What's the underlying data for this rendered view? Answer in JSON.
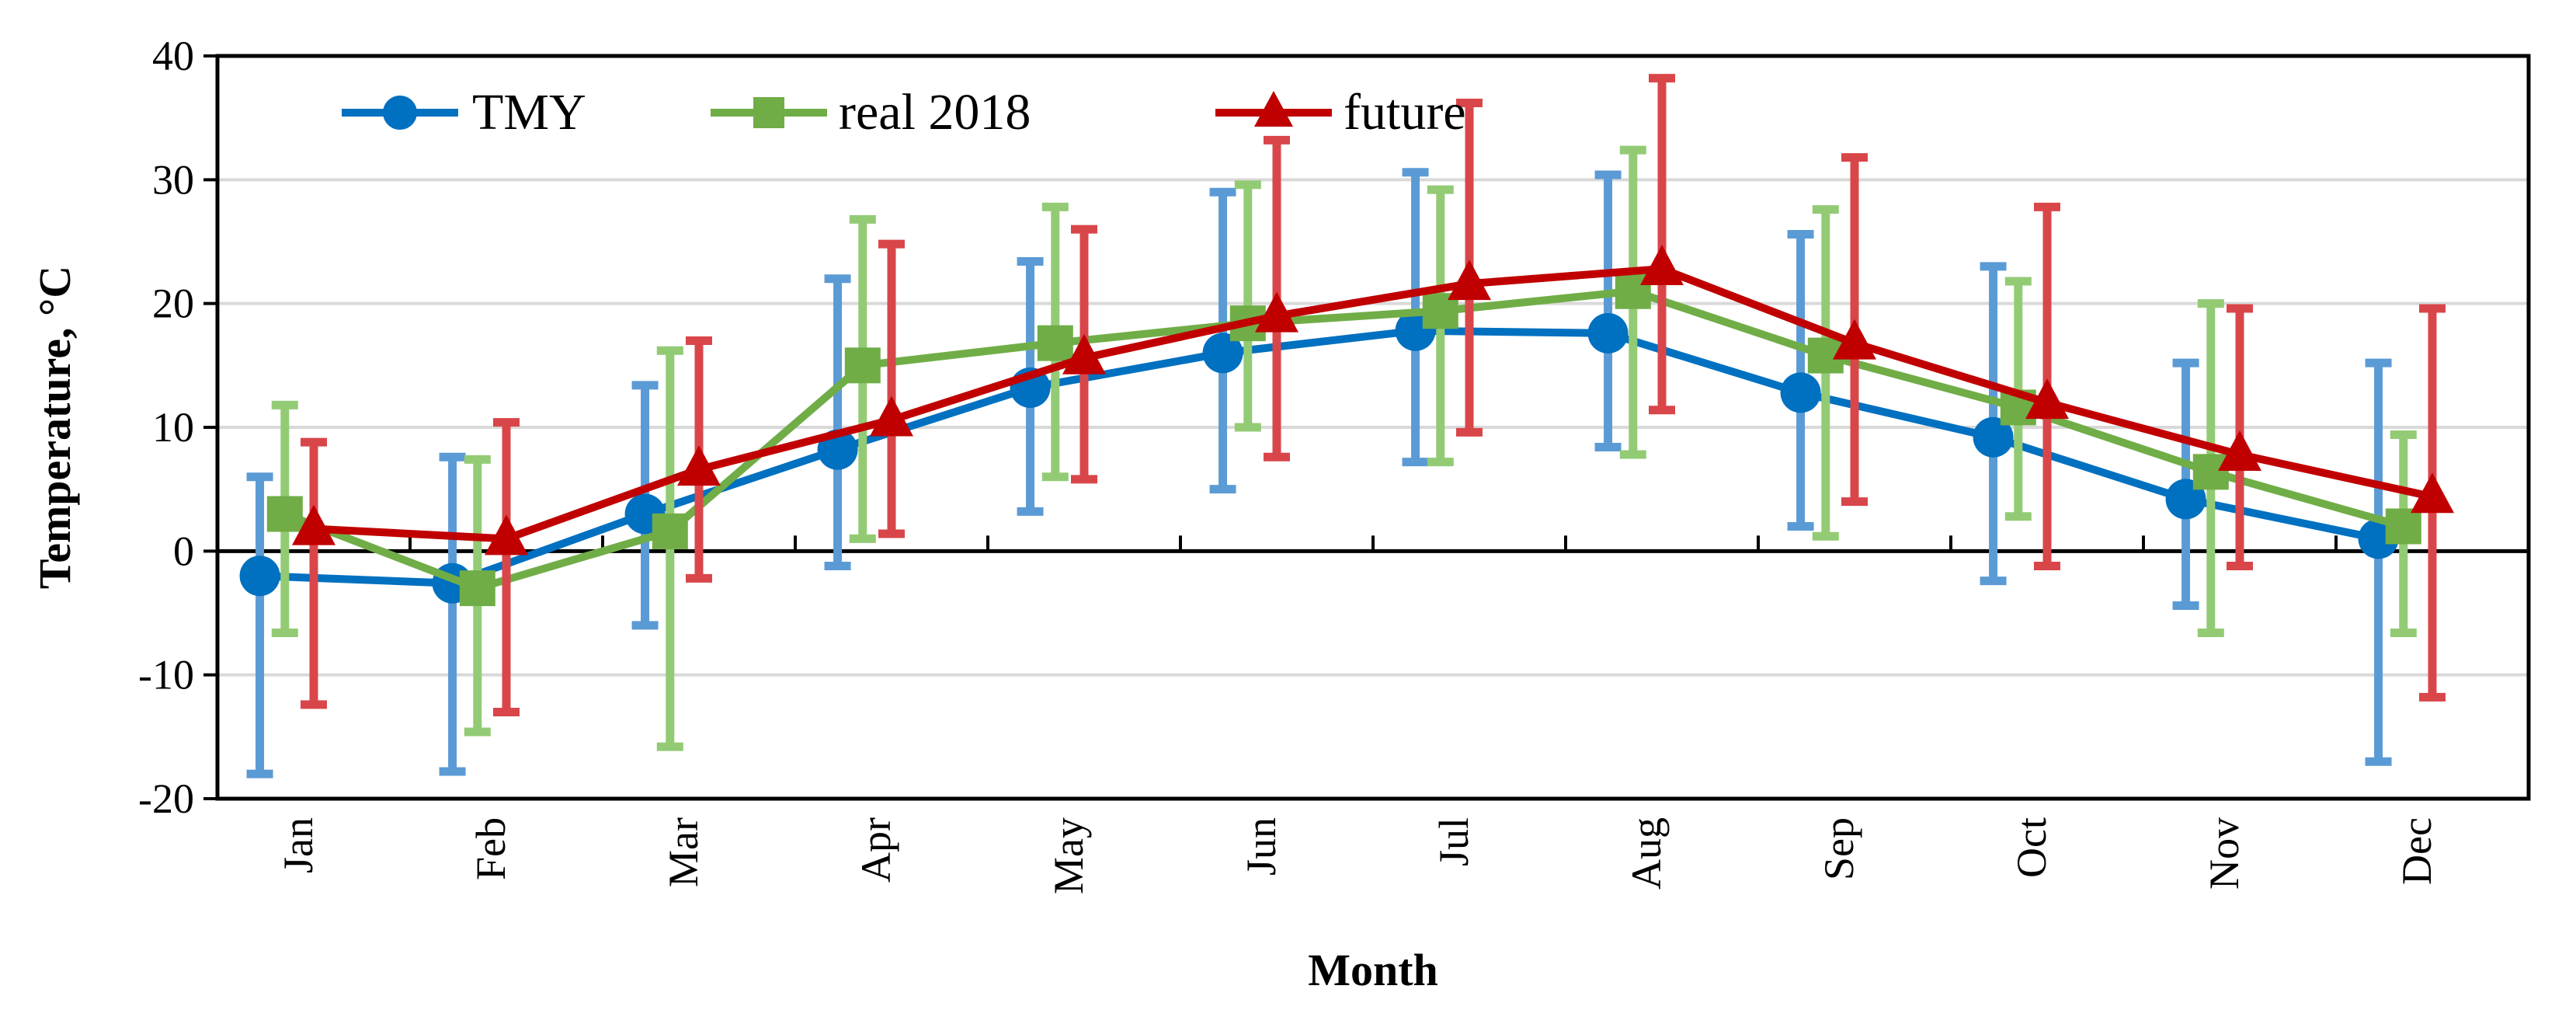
{
  "chart_data": {
    "type": "line",
    "title": "",
    "xlabel": "Month",
    "ylabel": "Temperature, °C",
    "ylim": [
      -20,
      40
    ],
    "yticks": [
      -20,
      -10,
      0,
      10,
      20,
      30,
      40
    ],
    "grid": true,
    "legend_position": "top-left",
    "categories": [
      "Jan",
      "Feb",
      "Mar",
      "Apr",
      "May",
      "Jun",
      "Jul",
      "Aug",
      "Sep",
      "Oct",
      "Nov",
      "Dec"
    ],
    "series": [
      {
        "name": "TMY",
        "marker": "circle",
        "color": "#0070C0",
        "error_color": "#5B9BD5",
        "offset": -0.28,
        "values": [
          -2,
          -2.6,
          3,
          8.2,
          13.2,
          16,
          17.8,
          17.6,
          12.8,
          9.2,
          4.2,
          1
        ],
        "max": [
          6,
          7.6,
          13.4,
          22,
          23.4,
          29,
          30.6,
          30.4,
          25.6,
          23,
          15.2,
          15.2
        ],
        "min": [
          -18,
          -17.8,
          -6,
          -1.2,
          3.2,
          5,
          7.2,
          8.4,
          2,
          -2.4,
          -4.4,
          -17
        ]
      },
      {
        "name": "real 2018",
        "marker": "square",
        "color": "#70AD47",
        "error_color": "#93CB75",
        "offset": -0.15,
        "values": [
          3,
          -3,
          1.6,
          15,
          16.8,
          18.4,
          19.4,
          21,
          15.8,
          11.6,
          6.4,
          2
        ],
        "max": [
          11.8,
          7.4,
          16.2,
          26.8,
          27.8,
          29.6,
          29.2,
          32.4,
          27.6,
          21.8,
          20,
          9.4
        ],
        "min": [
          -6.6,
          -14.6,
          -15.8,
          1,
          6,
          10,
          7.2,
          7.8,
          1.2,
          2.8,
          -6.6,
          -6.6
        ]
      },
      {
        "name": "future",
        "marker": "triangle",
        "color": "#C00000",
        "error_color": "#D9464A",
        "offset": 0,
        "values": [
          1.8,
          1,
          6.6,
          10.6,
          15.6,
          19,
          21.6,
          22.8,
          16.8,
          12,
          7.8,
          4.4
        ],
        "max": [
          8.8,
          10.4,
          17,
          24.8,
          26,
          33.2,
          36.2,
          38.2,
          31.8,
          27.8,
          19.6,
          19.6
        ],
        "min": [
          -12.4,
          -13,
          -2.2,
          1.4,
          5.8,
          7.6,
          9.6,
          11.4,
          4,
          -1.2,
          -1.2,
          -11.8
        ]
      }
    ]
  }
}
